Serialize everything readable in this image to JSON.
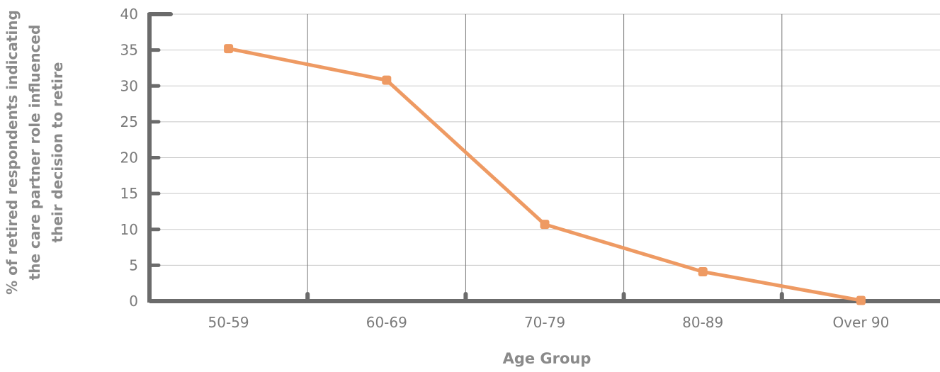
{
  "chart_data": {
    "type": "line",
    "categories": [
      "50-59",
      "60-69",
      "70-79",
      "80-89",
      "Over 90"
    ],
    "series": [
      {
        "values": [
          35.2,
          30.8,
          10.7,
          4.1,
          0.1
        ],
        "color": "#EE9A63"
      }
    ],
    "xlabel": "Age Group",
    "ylabel_lines": [
      "% of retired respondents indicating",
      "the care partner role influenced",
      "their decision to retire"
    ],
    "ylim": [
      0,
      40
    ],
    "yticks": [
      0,
      5,
      10,
      15,
      20,
      25,
      30,
      35,
      40
    ],
    "grid": true,
    "axis_color": "#6b6b6b",
    "grid_color": "#c8c8c8"
  }
}
